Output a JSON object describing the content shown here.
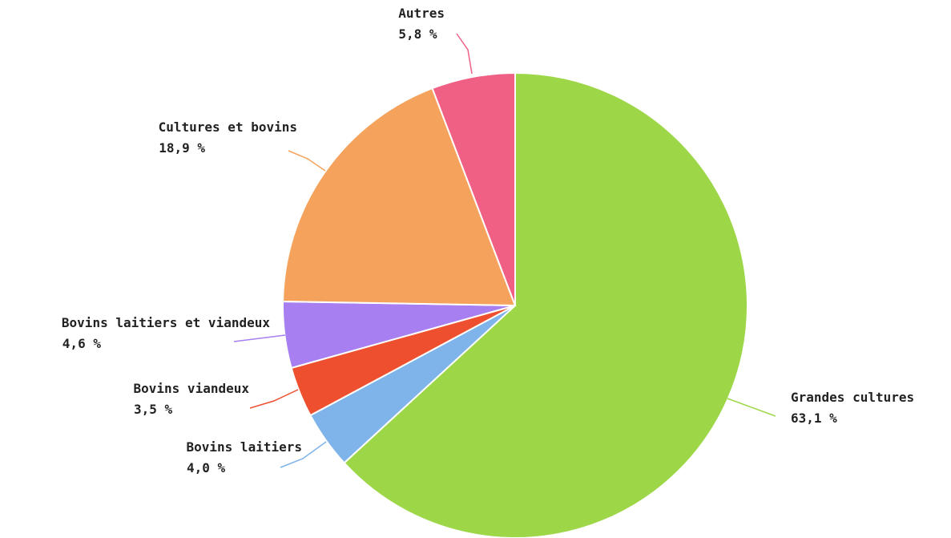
{
  "chart_data": {
    "type": "pie",
    "title": "",
    "start_angle_deg": 0,
    "direction": "clockwise",
    "slices": [
      {
        "label": "Grandes cultures",
        "value": 63.1,
        "value_label": "63,1 %",
        "color": "#9dd748"
      },
      {
        "label": "Bovins laitiers",
        "value": 4.0,
        "value_label": "4,0 %",
        "color": "#7eb4ea"
      },
      {
        "label": "Bovins viandeux",
        "value": 3.5,
        "value_label": "3,5 %",
        "color": "#ee4f2e"
      },
      {
        "label": "Bovins laitiers et viandeux",
        "value": 4.6,
        "value_label": "4,6 %",
        "color": "#a77ff0"
      },
      {
        "label": "Cultures et bovins",
        "value": 18.9,
        "value_label": "18,9 %",
        "color": "#f5a35c"
      },
      {
        "label": "Autres",
        "value": 5.8,
        "value_label": "5,8 %",
        "color": "#f06085"
      }
    ]
  }
}
